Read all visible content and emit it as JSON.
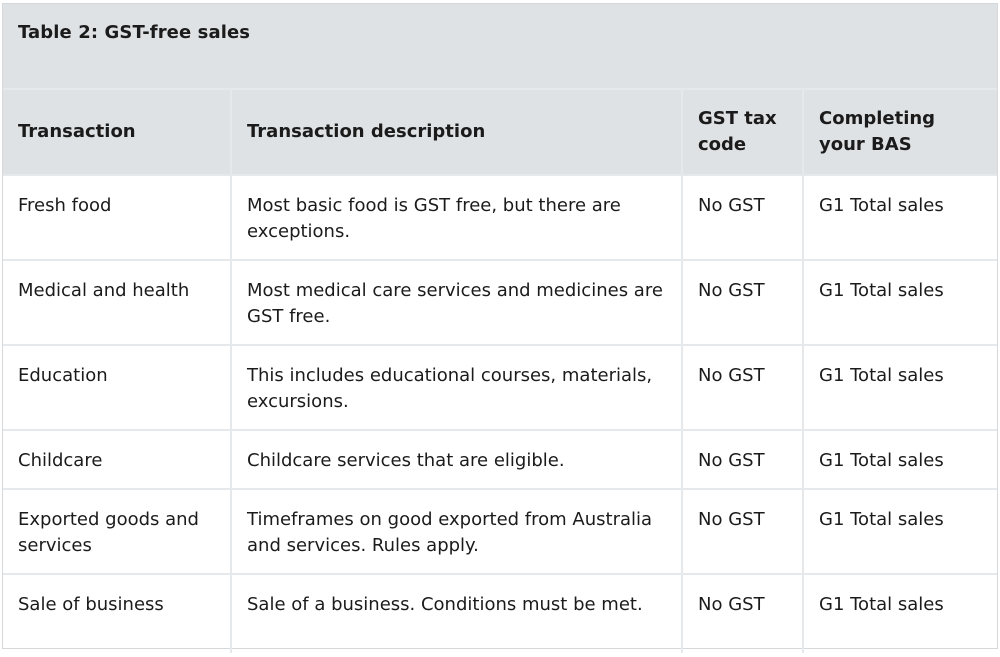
{
  "table": {
    "caption": "Table 2: GST-free sales",
    "headers": [
      "Transaction",
      "Transaction description",
      "GST tax code",
      "Completing your BAS"
    ],
    "rows": [
      [
        "Fresh food",
        "Most basic food is GST free, but there are exceptions.",
        "No GST",
        "G1 Total sales"
      ],
      [
        "Medical and health",
        "Most medical care services and medicines are GST free.",
        "No GST",
        "G1 Total sales"
      ],
      [
        "Education",
        "This includes educational courses, materials, excursions.",
        "No GST",
        "G1 Total sales"
      ],
      [
        "Childcare",
        "Childcare services that are eligible.",
        "No GST",
        "G1 Total sales"
      ],
      [
        "Exported goods and services",
        "Timeframes on good exported from Australia and services. Rules apply.",
        "No GST",
        "G1 Total sales"
      ],
      [
        "Sale of business",
        "Sale of a business. Conditions must be met.",
        "No GST",
        "G1 Total sales"
      ]
    ]
  }
}
